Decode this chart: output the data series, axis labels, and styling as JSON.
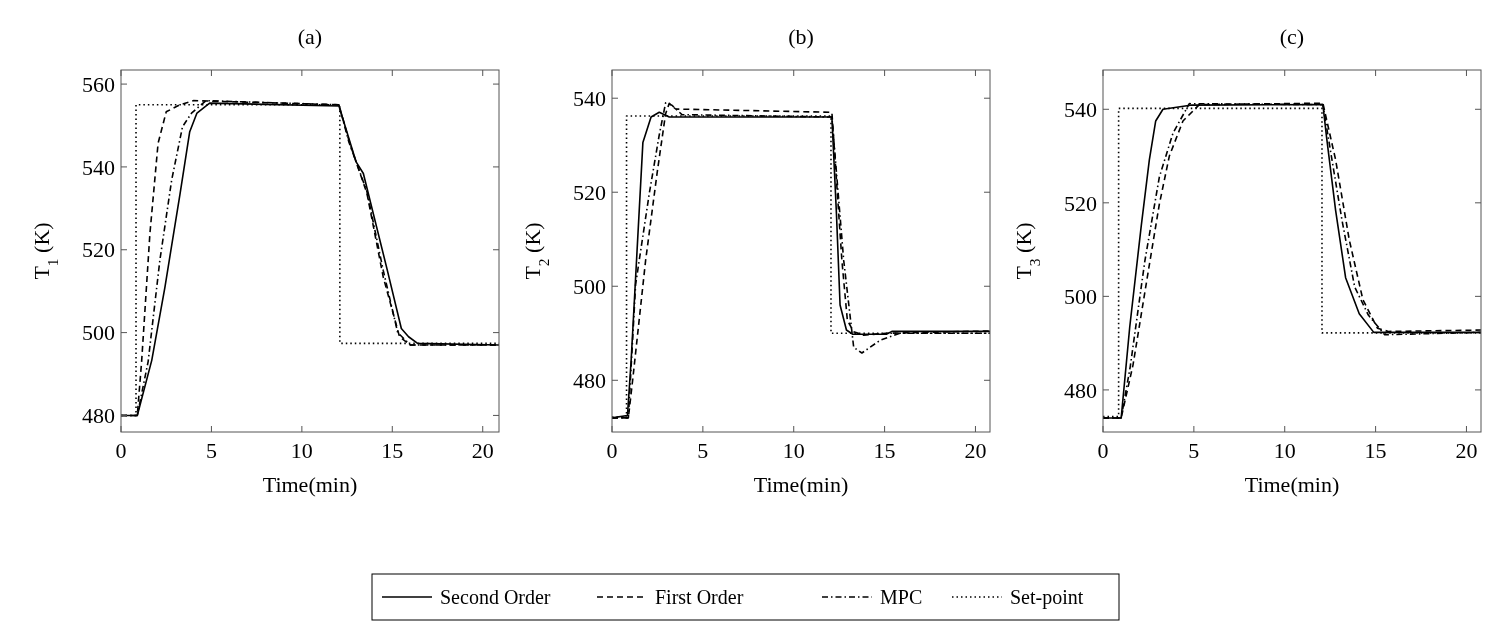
{
  "chart_data": [
    {
      "type": "line",
      "title": "(a)",
      "xlabel": "Time(min)",
      "ylabel": "T$_{1}$ (K)",
      "xlim": [
        0,
        20.9
      ],
      "ylim": [
        476,
        563.4
      ],
      "xticks": [
        0,
        5,
        10,
        15,
        20
      ],
      "yticks": [
        480,
        500,
        520,
        540,
        560
      ],
      "grid": false,
      "legend": "bottom",
      "marker": "none",
      "series": [
        {
          "name": "Second Order",
          "color": "#000000",
          "line_style": "solid",
          "x": [
            0,
            0.9,
            1.7,
            2.43,
            3.26,
            3.8,
            4.2,
            4.9,
            12.05,
            13.0,
            13.4,
            14.7,
            15.5,
            15.9,
            16.4,
            20.9
          ],
          "values": [
            480,
            480,
            493.3,
            511,
            533.4,
            548.5,
            553,
            555.4,
            554.7,
            541.2,
            538.4,
            515.5,
            501,
            499,
            497.4,
            497
          ]
        },
        {
          "name": "First Order",
          "color": "#000000",
          "line_style": "dashed",
          "x": [
            0,
            0.9,
            1.14,
            1.6,
            2.05,
            2.5,
            3.26,
            4.0,
            12.05,
            12.65,
            13.6,
            14.5,
            15.4,
            16.0,
            20.9
          ],
          "values": [
            480,
            480,
            493,
            524,
            545.7,
            553.3,
            555,
            556,
            555,
            545.7,
            533.6,
            513.4,
            499,
            497,
            497
          ]
        },
        {
          "name": "MPC",
          "color": "#000000",
          "line_style": "dashdot",
          "x": [
            0,
            0.9,
            1.5,
            2.15,
            2.8,
            3.4,
            3.9,
            4.7,
            12.05,
            12.6,
            13.6,
            14.5,
            15.3,
            16.0,
            20.9
          ],
          "values": [
            480,
            480,
            493,
            517.5,
            536.8,
            549.7,
            553,
            556,
            555,
            546,
            534,
            515,
            500,
            497,
            497
          ]
        },
        {
          "name": "Set-point",
          "color": "#000000",
          "line_style": "dotted",
          "x": [
            0,
            0.83,
            0.83,
            12.1,
            12.1,
            20.9
          ],
          "values": [
            480,
            480,
            555,
            555,
            497.4,
            497.4
          ]
        }
      ]
    },
    {
      "type": "line",
      "title": "(b)",
      "xlabel": "Time(min)",
      "ylabel": "T$_{2}$ (K)",
      "xlim": [
        0,
        20.8
      ],
      "ylim": [
        469,
        546
      ],
      "xticks": [
        0,
        5,
        10,
        15,
        20
      ],
      "yticks": [
        480,
        500,
        520,
        540
      ],
      "grid": false,
      "marker": "none",
      "series": [
        {
          "color": "#000000",
          "line_style": "solid",
          "x": [
            0,
            0.85,
            1.05,
            1.7,
            2.15,
            2.6,
            3.15,
            12.1,
            12.35,
            12.55,
            12.9,
            13.25,
            15.1,
            15.4,
            20.8
          ],
          "values": [
            472,
            472.5,
            484,
            530.6,
            536,
            537,
            536,
            536,
            515.5,
            496,
            490.7,
            489.8,
            489.8,
            490.4,
            490.4
          ]
        },
        {
          "color": "#000000",
          "line_style": "dashed",
          "x": [
            0,
            0.9,
            1.15,
            1.85,
            2.5,
            2.95,
            3.15,
            3.5,
            12.1,
            12.65,
            12.95,
            13.3,
            13.85,
            15.1,
            20.8
          ],
          "values": [
            472,
            472,
            480.5,
            505.5,
            524.6,
            536.7,
            538.9,
            537.7,
            537,
            505.5,
            492.8,
            490.3,
            489.6,
            490,
            490.5
          ]
        },
        {
          "color": "#000000",
          "line_style": "dashdot",
          "x": [
            0,
            0.9,
            1.3,
            2.05,
            2.6,
            2.95,
            3.3,
            3.85,
            12.1,
            12.75,
            13.3,
            13.75,
            14.75,
            15.85,
            20.8
          ],
          "values": [
            472,
            472,
            500.4,
            519.7,
            532.2,
            539,
            538.5,
            536.5,
            536,
            505.5,
            487,
            485.8,
            488.5,
            490,
            490
          ]
        },
        {
          "color": "#000000",
          "line_style": "dotted",
          "x": [
            0,
            0.8,
            0.8,
            12.05,
            12.05,
            20.8
          ],
          "values": [
            472.2,
            472.2,
            536.2,
            536.2,
            490,
            490
          ]
        }
      ]
    },
    {
      "type": "line",
      "title": "(c)",
      "xlabel": "Time(min)",
      "ylabel": "T$_{3}$ (K)",
      "xlim": [
        0,
        20.8
      ],
      "ylim": [
        471,
        548.4
      ],
      "xticks": [
        0,
        5,
        10,
        15,
        20
      ],
      "yticks": [
        480,
        500,
        520,
        540
      ],
      "grid": false,
      "marker": "none",
      "series": [
        {
          "color": "#000000",
          "line_style": "solid",
          "x": [
            0,
            1.0,
            1.47,
            2.1,
            2.55,
            2.9,
            3.3,
            4.9,
            12.1,
            12.3,
            12.8,
            13.35,
            14.1,
            14.9,
            20.8
          ],
          "values": [
            474,
            474,
            493.4,
            514.9,
            529.2,
            537.5,
            540,
            540.9,
            541,
            534.1,
            518.4,
            504,
            496.3,
            492.3,
            492.3
          ]
        },
        {
          "color": "#000000",
          "line_style": "dashed",
          "x": [
            0,
            1.0,
            1.65,
            2.4,
            3.1,
            3.65,
            4.4,
            5.3,
            12.1,
            12.8,
            13.55,
            14.3,
            15.1,
            15.7,
            20.8
          ],
          "values": [
            474,
            474,
            485.3,
            503.2,
            519.7,
            530,
            537.5,
            541,
            541.3,
            529.2,
            512.1,
            499.3,
            493.2,
            492.5,
            492.8
          ]
        },
        {
          "color": "#000000",
          "line_style": "dashdot",
          "x": [
            0,
            1.0,
            1.5,
            2.3,
            3.1,
            3.85,
            4.75,
            12.1,
            12.6,
            13.15,
            13.85,
            14.6,
            15.5,
            20.8
          ],
          "values": [
            474,
            474,
            485,
            507.5,
            525.5,
            534.9,
            541.2,
            541,
            529.2,
            516.3,
            502,
            496,
            491.8,
            492.3
          ]
        },
        {
          "color": "#000000",
          "line_style": "dotted",
          "x": [
            0,
            0.86,
            0.86,
            12.05,
            12.05,
            20.8
          ],
          "values": [
            474.3,
            474.3,
            540.2,
            540.2,
            492.2,
            492.2
          ]
        }
      ]
    }
  ]
}
